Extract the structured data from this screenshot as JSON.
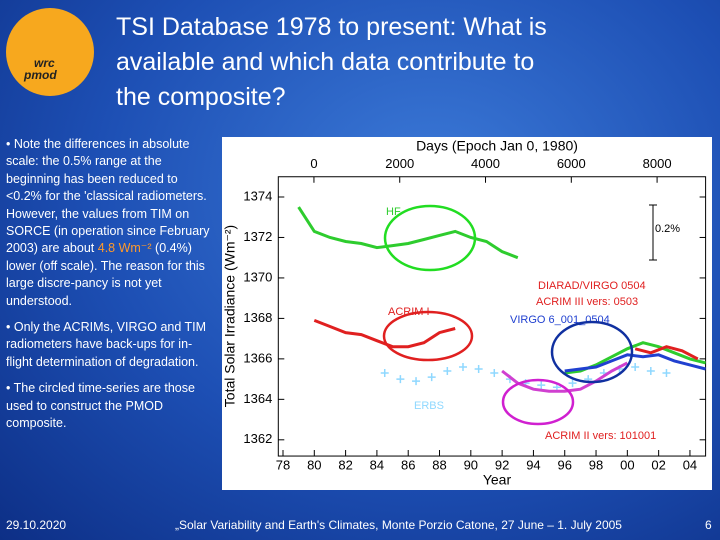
{
  "logo": {
    "top": "wrc",
    "bottom": "pmod"
  },
  "title": [
    "TSI Database 1978 to present: What is",
    "available and which data contribute to",
    "the composite?"
  ],
  "bullets": [
    {
      "marker": "•",
      "before": "Note the differences in absolute scale: the 0.5% range at the beginning has been reduced to <0.2% for the 'classical radiometers. However, the values from TIM  on SORCE (in operation since February 2003) are about ",
      "highlight": "4.8 Wm⁻²",
      "after": " (0.4%) lower (off scale). The reason for this large discre-pancy is not yet understood."
    },
    {
      "marker": "•",
      "before": "Only the ACRIMs, VIRGO and TIM radiometers have back-ups for in-flight determination of degradation."
    },
    {
      "marker": "•",
      "before": "The circled time-series are those used to construct the PMOD composite."
    }
  ],
  "footer": {
    "date": "29.10.2020",
    "event": "„Solar Variability and Earth's Climates, Monte Porzio Catone, 27 June – 1. July 2005",
    "page": "6"
  },
  "chart_data": {
    "type": "line",
    "x2_label": "Days (Epoch Jan 0, 1980)",
    "x_label": "Year",
    "y_label": "Total Solar Irradiance (Wm⁻²)",
    "scale_bar_label": "0.2%",
    "xlim": [
      1977.7,
      2005
    ],
    "xticks": [
      {
        "value": 1978,
        "label": "78"
      },
      {
        "value": 1980,
        "label": "80"
      },
      {
        "value": 1982,
        "label": "82"
      },
      {
        "value": 1984,
        "label": "84"
      },
      {
        "value": 1986,
        "label": "86"
      },
      {
        "value": 1988,
        "label": "88"
      },
      {
        "value": 1990,
        "label": "90"
      },
      {
        "value": 1992,
        "label": "92"
      },
      {
        "value": 1994,
        "label": "94"
      },
      {
        "value": 1996,
        "label": "96"
      },
      {
        "value": 1998,
        "label": "98"
      },
      {
        "value": 2000,
        "label": "00"
      },
      {
        "value": 2002,
        "label": "02"
      },
      {
        "value": 2004,
        "label": "04"
      }
    ],
    "x2lim": [
      -831,
      9131
    ],
    "x2ticks": [
      0,
      2000,
      4000,
      6000,
      8000
    ],
    "ylim": [
      1361.2,
      1375
    ],
    "yticks": [
      1362,
      1364,
      1366,
      1368,
      1370,
      1372,
      1374
    ],
    "series": [
      {
        "name": "HF",
        "color": "#2ecc2e",
        "x": [
          1979,
          1980,
          1981,
          1982,
          1983,
          1984,
          1985,
          1986,
          1987,
          1988,
          1989,
          1990,
          1991,
          1992,
          1993
        ],
        "values": [
          1373.5,
          1372.3,
          1372.0,
          1371.8,
          1371.7,
          1371.5,
          1371.6,
          1371.7,
          1371.9,
          1372.1,
          1372.3,
          1372.0,
          1371.8,
          1371.3,
          1371.0
        ]
      },
      {
        "name": "ACRIM I",
        "color": "#e02020",
        "x": [
          1980,
          1981,
          1982,
          1983,
          1984,
          1985,
          1986,
          1987,
          1988,
          1989
        ],
        "values": [
          1367.9,
          1367.6,
          1367.3,
          1367.2,
          1366.9,
          1366.6,
          1366.6,
          1366.8,
          1367.3,
          1367.5
        ]
      },
      {
        "name": "ERBS",
        "color": "#8fd8ff",
        "marker": "plus",
        "x": [
          1984.5,
          1985.5,
          1986.5,
          1987.5,
          1988.5,
          1989.5,
          1990.5,
          1991.5,
          1992.5,
          1993.5,
          1994.5,
          1995.5,
          1996.5,
          1997.5,
          1998.5,
          1999.5,
          2000.5,
          2001.5,
          2002.5
        ],
        "values": [
          1365.3,
          1365.0,
          1364.9,
          1365.1,
          1365.4,
          1365.6,
          1365.5,
          1365.3,
          1365.0,
          1364.8,
          1364.7,
          1364.6,
          1364.8,
          1365.0,
          1365.3,
          1365.5,
          1365.6,
          1365.4,
          1365.3
        ]
      },
      {
        "name": "DIARAD/VIRGO 0504",
        "color": "#2ecc2e",
        "x": [
          1996,
          1997,
          1998,
          1999,
          2000,
          2001,
          2002,
          2003,
          2004,
          2005
        ],
        "values": [
          1365.3,
          1365.4,
          1365.7,
          1366.1,
          1366.5,
          1366.8,
          1366.6,
          1366.3,
          1366.0,
          1365.8
        ]
      },
      {
        "name": "ACRIM III vers: 0503",
        "color": "#e02020",
        "x": [
          2000.5,
          2001.5,
          2002.5,
          2003.5,
          2004.5
        ],
        "values": [
          1366.5,
          1366.3,
          1366.6,
          1366.4,
          1366.0
        ]
      },
      {
        "name": "VIRGO 6_001_0504",
        "color": "#2040d0",
        "x": [
          1996,
          1997,
          1998,
          1999,
          2000,
          2001,
          2002,
          2003,
          2004,
          2005
        ],
        "values": [
          1365.4,
          1365.5,
          1365.6,
          1365.9,
          1366.2,
          1366.1,
          1366.2,
          1365.9,
          1365.7,
          1365.5
        ]
      },
      {
        "name": "ACRIM II vers: 101001",
        "color": "#d040d0",
        "x": [
          1992,
          1993,
          1994,
          1995,
          1996,
          1997,
          1998,
          1999,
          2000
        ],
        "values": [
          1365.4,
          1364.8,
          1364.5,
          1364.4,
          1364.4,
          1364.5,
          1364.9,
          1365.4,
          1365.8
        ]
      }
    ]
  }
}
